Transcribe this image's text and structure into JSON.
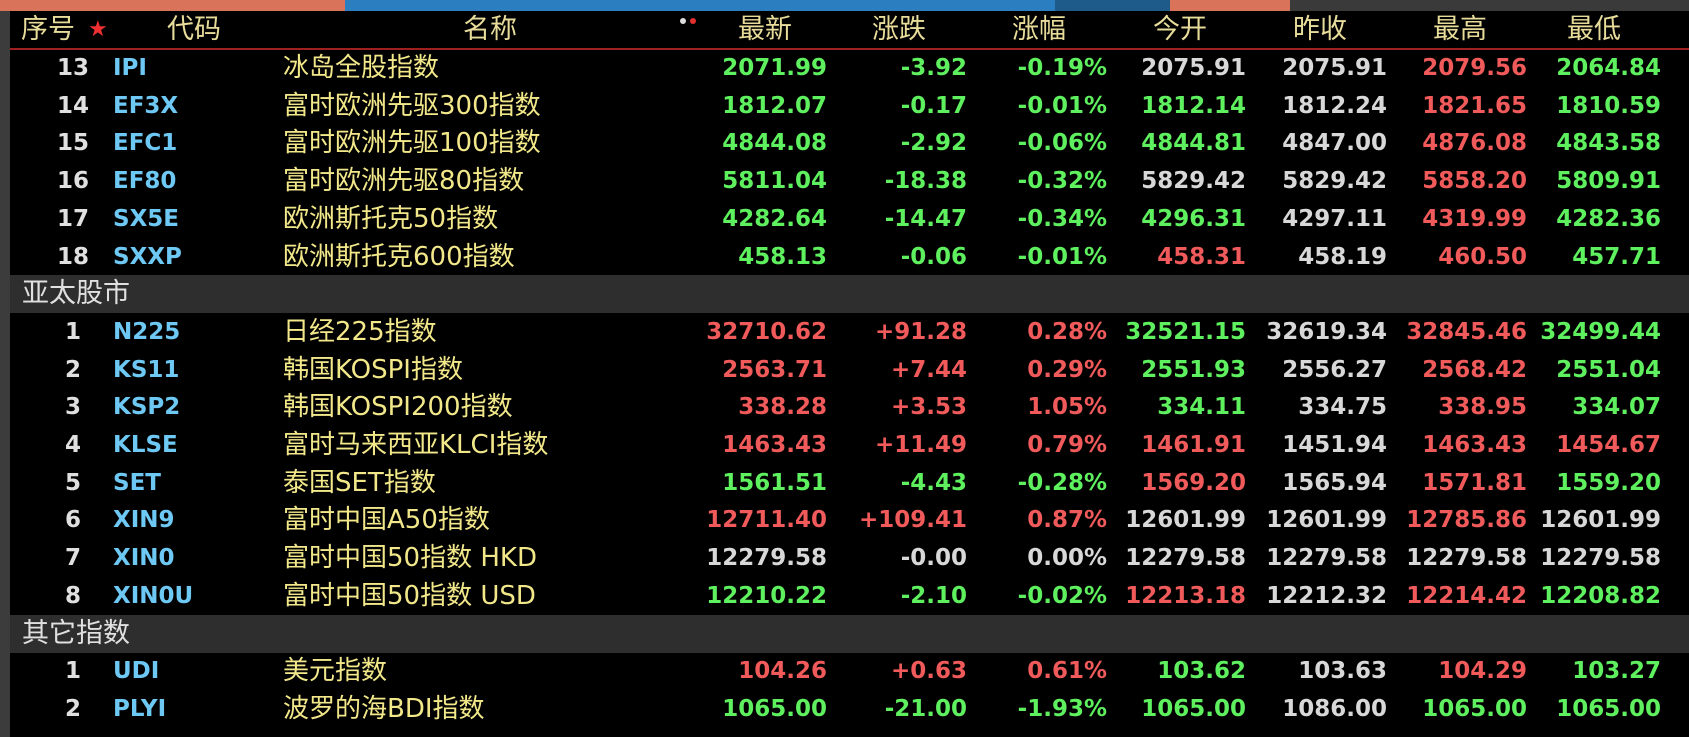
{
  "header": {
    "star": "★",
    "columns": [
      "序号",
      "代码",
      "名称",
      "最新",
      "涨跌",
      "涨幅",
      "今开",
      "昨收",
      "最高",
      "最低"
    ]
  },
  "rows": [
    {
      "cells": [
        "13",
        "IPI",
        "冰岛全股指数",
        "2071.99",
        "-3.92",
        "-0.19%",
        "2075.91",
        "2075.91",
        "2079.56",
        "2064.84"
      ],
      "colors": [
        "#5ef05e",
        "#5ef05e",
        "#5ef05e",
        "#d8d8d8",
        "#d8d8d8",
        "#f05a5a",
        "#5ef05e"
      ]
    },
    {
      "cells": [
        "14",
        "EF3X",
        "富时欧洲先驱300指数",
        "1812.07",
        "-0.17",
        "-0.01%",
        "1812.14",
        "1812.24",
        "1821.65",
        "1810.59"
      ],
      "colors": [
        "#5ef05e",
        "#5ef05e",
        "#5ef05e",
        "#5ef05e",
        "#d8d8d8",
        "#f05a5a",
        "#5ef05e"
      ]
    },
    {
      "cells": [
        "15",
        "EFC1",
        "富时欧洲先驱100指数",
        "4844.08",
        "-2.92",
        "-0.06%",
        "4844.81",
        "4847.00",
        "4876.08",
        "4843.58"
      ],
      "colors": [
        "#5ef05e",
        "#5ef05e",
        "#5ef05e",
        "#5ef05e",
        "#d8d8d8",
        "#f05a5a",
        "#5ef05e"
      ]
    },
    {
      "cells": [
        "16",
        "EF80",
        "富时欧洲先驱80指数",
        "5811.04",
        "-18.38",
        "-0.32%",
        "5829.42",
        "5829.42",
        "5858.20",
        "5809.91"
      ],
      "colors": [
        "#5ef05e",
        "#5ef05e",
        "#5ef05e",
        "#d8d8d8",
        "#d8d8d8",
        "#f05a5a",
        "#5ef05e"
      ]
    },
    {
      "cells": [
        "17",
        "SX5E",
        "欧洲斯托克50指数",
        "4282.64",
        "-14.47",
        "-0.34%",
        "4296.31",
        "4297.11",
        "4319.99",
        "4282.36"
      ],
      "colors": [
        "#5ef05e",
        "#5ef05e",
        "#5ef05e",
        "#5ef05e",
        "#d8d8d8",
        "#f05a5a",
        "#5ef05e"
      ]
    },
    {
      "cells": [
        "18",
        "SXXP",
        "欧洲斯托克600指数",
        "458.13",
        "-0.06",
        "-0.01%",
        "458.31",
        "458.19",
        "460.50",
        "457.71"
      ],
      "colors": [
        "#5ef05e",
        "#5ef05e",
        "#5ef05e",
        "#f05a5a",
        "#d8d8d8",
        "#f05a5a",
        "#5ef05e"
      ]
    },
    {
      "section": "亚太股市"
    },
    {
      "cells": [
        "1",
        "N225",
        "日经225指数",
        "32710.62",
        "+91.28",
        "0.28%",
        "32521.15",
        "32619.34",
        "32845.46",
        "32499.44"
      ],
      "colors": [
        "#f05a5a",
        "#f05a5a",
        "#f05a5a",
        "#5ef05e",
        "#d8d8d8",
        "#f05a5a",
        "#5ef05e"
      ]
    },
    {
      "cells": [
        "2",
        "KS11",
        "韩国KOSPI指数",
        "2563.71",
        "+7.44",
        "0.29%",
        "2551.93",
        "2556.27",
        "2568.42",
        "2551.04"
      ],
      "colors": [
        "#f05a5a",
        "#f05a5a",
        "#f05a5a",
        "#5ef05e",
        "#d8d8d8",
        "#f05a5a",
        "#5ef05e"
      ]
    },
    {
      "cells": [
        "3",
        "KSP2",
        "韩国KOSPI200指数",
        "338.28",
        "+3.53",
        "1.05%",
        "334.11",
        "334.75",
        "338.95",
        "334.07"
      ],
      "colors": [
        "#f05a5a",
        "#f05a5a",
        "#f05a5a",
        "#5ef05e",
        "#d8d8d8",
        "#f05a5a",
        "#5ef05e"
      ]
    },
    {
      "cells": [
        "4",
        "KLSE",
        "富时马来西亚KLCI指数",
        "1463.43",
        "+11.49",
        "0.79%",
        "1461.91",
        "1451.94",
        "1463.43",
        "1454.67"
      ],
      "colors": [
        "#f05a5a",
        "#f05a5a",
        "#f05a5a",
        "#f05a5a",
        "#d8d8d8",
        "#f05a5a",
        "#f05a5a"
      ]
    },
    {
      "cells": [
        "5",
        "SET",
        "泰国SET指数",
        "1561.51",
        "-4.43",
        "-0.28%",
        "1569.20",
        "1565.94",
        "1571.81",
        "1559.20"
      ],
      "colors": [
        "#5ef05e",
        "#5ef05e",
        "#5ef05e",
        "#f05a5a",
        "#d8d8d8",
        "#f05a5a",
        "#5ef05e"
      ]
    },
    {
      "cells": [
        "6",
        "XIN9",
        "富时中国A50指数",
        "12711.40",
        "+109.41",
        "0.87%",
        "12601.99",
        "12601.99",
        "12785.86",
        "12601.99"
      ],
      "colors": [
        "#f05a5a",
        "#f05a5a",
        "#f05a5a",
        "#d8d8d8",
        "#d8d8d8",
        "#f05a5a",
        "#d8d8d8"
      ]
    },
    {
      "cells": [
        "7",
        "XIN0",
        "富时中国50指数 HKD",
        "12279.58",
        "-0.00",
        "0.00%",
        "12279.58",
        "12279.58",
        "12279.58",
        "12279.58"
      ],
      "colors": [
        "#d8d8d8",
        "#d8d8d8",
        "#d8d8d8",
        "#d8d8d8",
        "#d8d8d8",
        "#d8d8d8",
        "#d8d8d8"
      ]
    },
    {
      "cells": [
        "8",
        "XIN0U",
        "富时中国50指数 USD",
        "12210.22",
        "-2.10",
        "-0.02%",
        "12213.18",
        "12212.32",
        "12214.42",
        "12208.82"
      ],
      "colors": [
        "#5ef05e",
        "#5ef05e",
        "#5ef05e",
        "#f05a5a",
        "#d8d8d8",
        "#f05a5a",
        "#5ef05e"
      ]
    },
    {
      "section": "其它指数"
    },
    {
      "cells": [
        "1",
        "UDI",
        "美元指数",
        "104.26",
        "+0.63",
        "0.61%",
        "103.62",
        "103.63",
        "104.29",
        "103.27"
      ],
      "colors": [
        "#f05a5a",
        "#f05a5a",
        "#f05a5a",
        "#5ef05e",
        "#d8d8d8",
        "#f05a5a",
        "#5ef05e"
      ]
    },
    {
      "cells": [
        "2",
        "PLYI",
        "波罗的海BDI指数",
        "1065.00",
        "-21.00",
        "-1.93%",
        "1065.00",
        "1086.00",
        "1065.00",
        "1065.00"
      ],
      "colors": [
        "#5ef05e",
        "#5ef05e",
        "#5ef05e",
        "#5ef05e",
        "#d8d8d8",
        "#5ef05e",
        "#5ef05e"
      ]
    }
  ]
}
